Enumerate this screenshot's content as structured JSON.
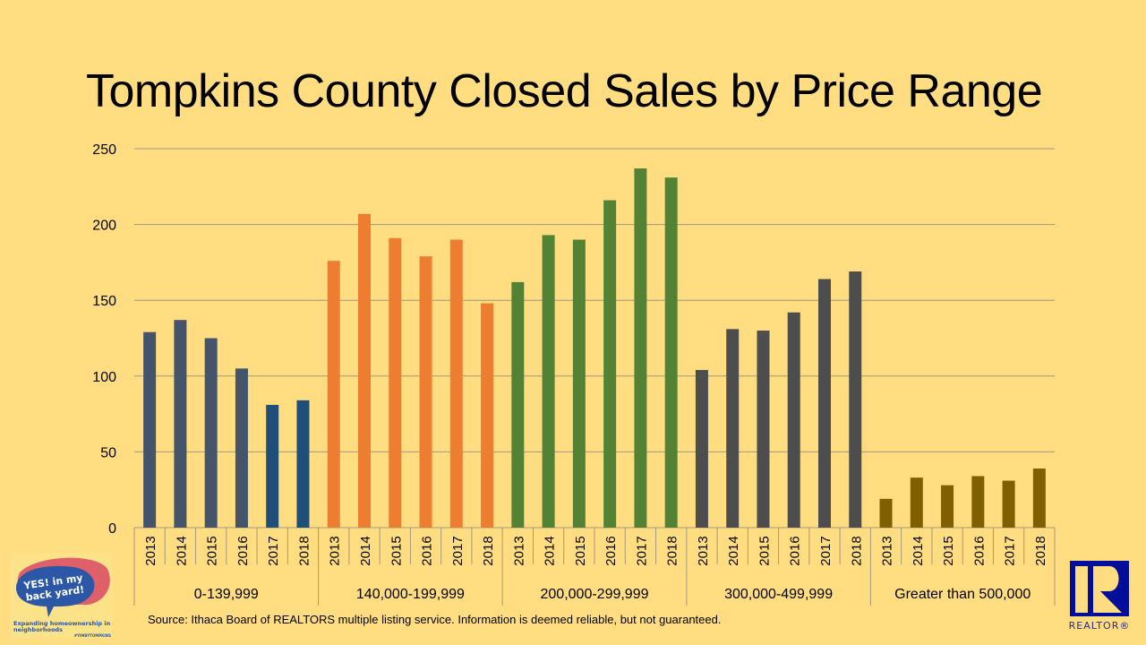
{
  "title": "Tompkins County Closed Sales by Price Range",
  "source": "Source:  Ithaca Board of REALTORS multiple listing service. Information is deemed reliable, but not guaranteed.",
  "logos": {
    "yimby": {
      "headline": "YES! in my back yard!",
      "tagline": "Expanding homeownership in our neighborhoods",
      "hashtag": "#YIMBYTOMPKINS"
    },
    "realtor": {
      "text": "REALTOR®"
    }
  },
  "chart_data": {
    "type": "bar",
    "title": "Tompkins County Closed Sales by Price Range",
    "xlabel": "",
    "ylabel": "",
    "ylim": [
      0,
      250
    ],
    "yticks": [
      0,
      50,
      100,
      150,
      200,
      250
    ],
    "grid": true,
    "legend": "none",
    "background": "#FFDD80",
    "groups": [
      {
        "label": "0-139,999",
        "years": [
          "2013",
          "2014",
          "2015",
          "2016",
          "2017",
          "2018"
        ],
        "values": [
          129,
          137,
          125,
          105,
          81,
          84
        ],
        "colors": [
          "#44546A",
          "#44546A",
          "#44546A",
          "#44546A",
          "#1F4E79",
          "#1F4E79"
        ]
      },
      {
        "label": "140,000-199,999",
        "years": [
          "2013",
          "2014",
          "2015",
          "2016",
          "2017",
          "2018"
        ],
        "values": [
          176,
          207,
          191,
          179,
          190,
          148
        ],
        "colors": [
          "#ED7D31",
          "#ED7D31",
          "#ED7D31",
          "#ED7D31",
          "#ED7D31",
          "#ED7D31"
        ]
      },
      {
        "label": "200,000-299,999",
        "years": [
          "2013",
          "2014",
          "2015",
          "2016",
          "2017",
          "2018"
        ],
        "values": [
          162,
          193,
          190,
          216,
          237,
          231
        ],
        "colors": [
          "#548235",
          "#548235",
          "#548235",
          "#548235",
          "#548235",
          "#548235"
        ]
      },
      {
        "label": "300,000-499,999",
        "years": [
          "2013",
          "2014",
          "2015",
          "2016",
          "2017",
          "2018"
        ],
        "values": [
          104,
          131,
          130,
          142,
          164,
          169
        ],
        "colors": [
          "#4D4D4D",
          "#4D4D4D",
          "#4D4D4D",
          "#4D4D4D",
          "#4D4D4D",
          "#4D4D4D"
        ]
      },
      {
        "label": "Greater than 500,000",
        "years": [
          "2013",
          "2014",
          "2015",
          "2016",
          "2017",
          "2018"
        ],
        "values": [
          19,
          33,
          28,
          34,
          31,
          39
        ],
        "colors": [
          "#7F6000",
          "#7F6000",
          "#7F6000",
          "#7F6000",
          "#7F6000",
          "#7F6000"
        ]
      }
    ]
  }
}
